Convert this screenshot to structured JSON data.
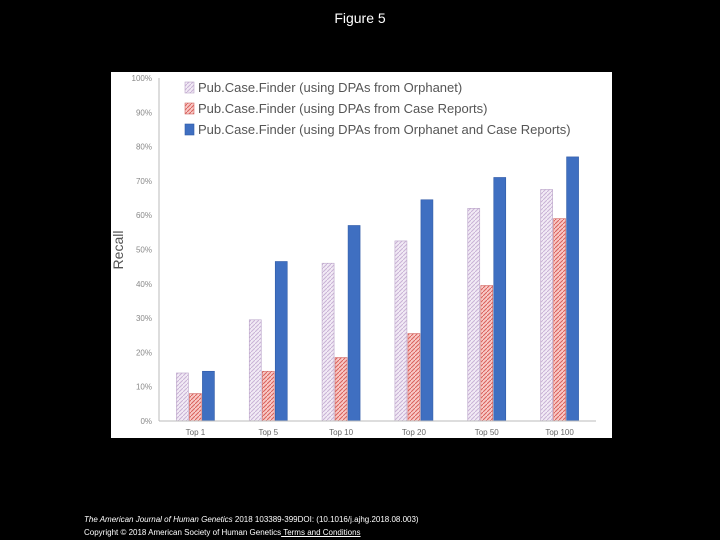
{
  "slide_title": "Figure 5",
  "footer": {
    "journal": "The American Journal of Human Genetics",
    "citation": " 2018 103389-399DOI: (10.1016/j.ajhg.2018.08.003)",
    "copyright": "Copyright © 2018 American Society of Human Genetics",
    "terms_link": " Terms and Conditions"
  },
  "chart_data": {
    "type": "bar",
    "title": "",
    "xlabel": "",
    "ylabel": "Recall",
    "ylim": [
      0,
      100
    ],
    "yticks": [
      "0%",
      "10%",
      "20%",
      "30%",
      "40%",
      "50%",
      "60%",
      "70%",
      "80%",
      "90%",
      "100%"
    ],
    "categories": [
      "Top 1",
      "Top 5",
      "Top 10",
      "Top 20",
      "Top 50",
      "Top 100"
    ],
    "legend_position": "top",
    "grid": false,
    "series": [
      {
        "name": "Pub.Case.Finder (using DPAs from Orphanet)",
        "color": "#e3d3ea",
        "values": [
          14,
          29.5,
          46,
          52.5,
          62,
          67.5
        ]
      },
      {
        "name": "Pub.Case.Finder (using DPAs from Case Reports)",
        "color": "#ef9f9c",
        "values": [
          8,
          14.5,
          18.5,
          25.5,
          39.5,
          59
        ]
      },
      {
        "name": "Pub.Case.Finder (using DPAs from Orphanet and Case Reports)",
        "color": "#3f6fc1",
        "values": [
          14.5,
          46.5,
          57,
          64.5,
          71,
          77
        ]
      }
    ]
  }
}
